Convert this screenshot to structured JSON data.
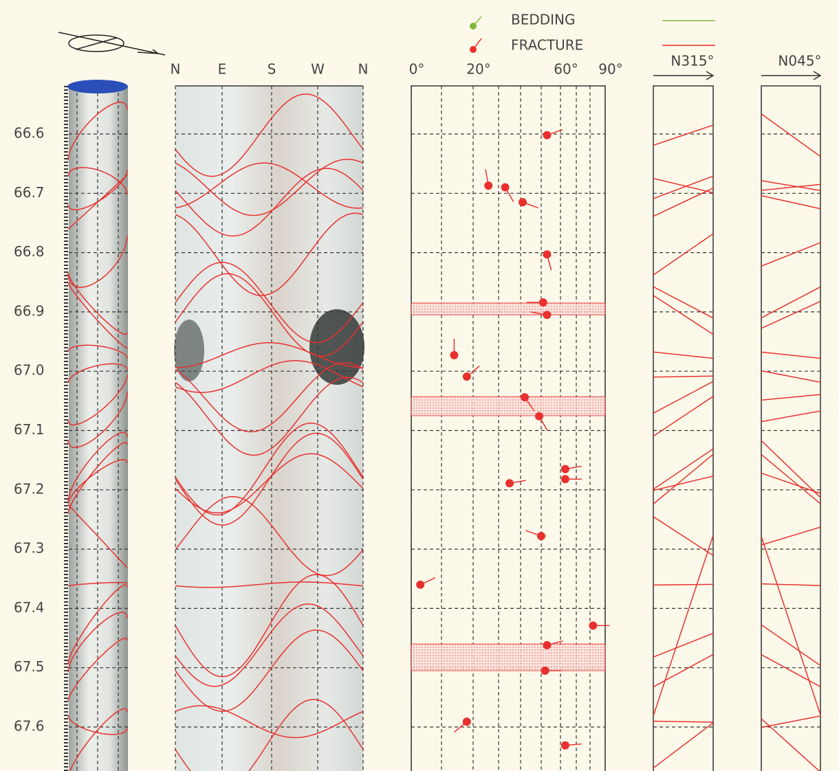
{
  "legend": [
    {
      "label": "BEDDING",
      "color": "#7fba3a"
    },
    {
      "label": "FRACTURE",
      "color": "#e8312f"
    }
  ],
  "depth_ticks": [
    66.6,
    66.7,
    66.8,
    66.9,
    {
      "value": 67,
      "label": "67.0"
    },
    67.1,
    67.2,
    67.3,
    67.4,
    67.5,
    67.6
  ],
  "azimuth_labels": [
    "N",
    "E",
    "S",
    "W",
    "N"
  ],
  "dip_ticks": [
    {
      "value": 0,
      "label": "0°"
    },
    {
      "value": 20,
      "label": "20°"
    },
    {
      "value": 60,
      "label": "60°"
    },
    {
      "value": 90,
      "label": "90°"
    }
  ],
  "dip_grid": [
    0,
    10,
    20,
    30,
    40,
    50,
    60,
    70,
    80,
    90
  ],
  "sections": [
    {
      "label": "N315°",
      "azimuth": 315
    },
    {
      "label": "N045°",
      "azimuth": 45
    }
  ],
  "beds": [
    {
      "top": 66.885,
      "bottom": 66.905
    },
    {
      "top": 67.043,
      "bottom": 67.075
    },
    {
      "top": 67.46,
      "bottom": 67.505
    }
  ],
  "tadpoles": [
    {
      "depth": 66.602,
      "dip": 53,
      "azimuth": 70
    },
    {
      "depth": 66.687,
      "dip": 26,
      "azimuth": 350
    },
    {
      "depth": 66.69,
      "dip": 33,
      "azimuth": 150
    },
    {
      "depth": 66.715,
      "dip": 41,
      "azimuth": 110
    },
    {
      "depth": 66.803,
      "dip": 53,
      "azimuth": 165
    },
    {
      "depth": 66.884,
      "dip": 51,
      "azimuth": 270
    },
    {
      "depth": 66.905,
      "dip": 53,
      "azimuth": 280
    },
    {
      "depth": 66.973,
      "dip": 14,
      "azimuth": 0
    },
    {
      "depth": 67.009,
      "dip": 18,
      "azimuth": 50
    },
    {
      "depth": 67.044,
      "dip": 42,
      "azimuth": 145
    },
    {
      "depth": 67.076,
      "dip": 49,
      "azimuth": 150
    },
    {
      "depth": 67.165,
      "dip": 63,
      "azimuth": 80
    },
    {
      "depth": 67.182,
      "dip": 63,
      "azimuth": 90
    },
    {
      "depth": 67.189,
      "dip": 35,
      "azimuth": 80
    },
    {
      "depth": 67.278,
      "dip": 50,
      "azimuth": 290
    },
    {
      "depth": 67.36,
      "dip": 3,
      "azimuth": 65
    },
    {
      "depth": 67.429,
      "dip": 82,
      "azimuth": 90
    },
    {
      "depth": 67.462,
      "dip": 53,
      "azimuth": 75
    },
    {
      "depth": 67.505,
      "dip": 52,
      "azimuth": 90
    },
    {
      "depth": 67.591,
      "dip": 18,
      "azimuth": 230
    },
    {
      "depth": 67.631,
      "dip": 63,
      "azimuth": 85
    }
  ]
}
